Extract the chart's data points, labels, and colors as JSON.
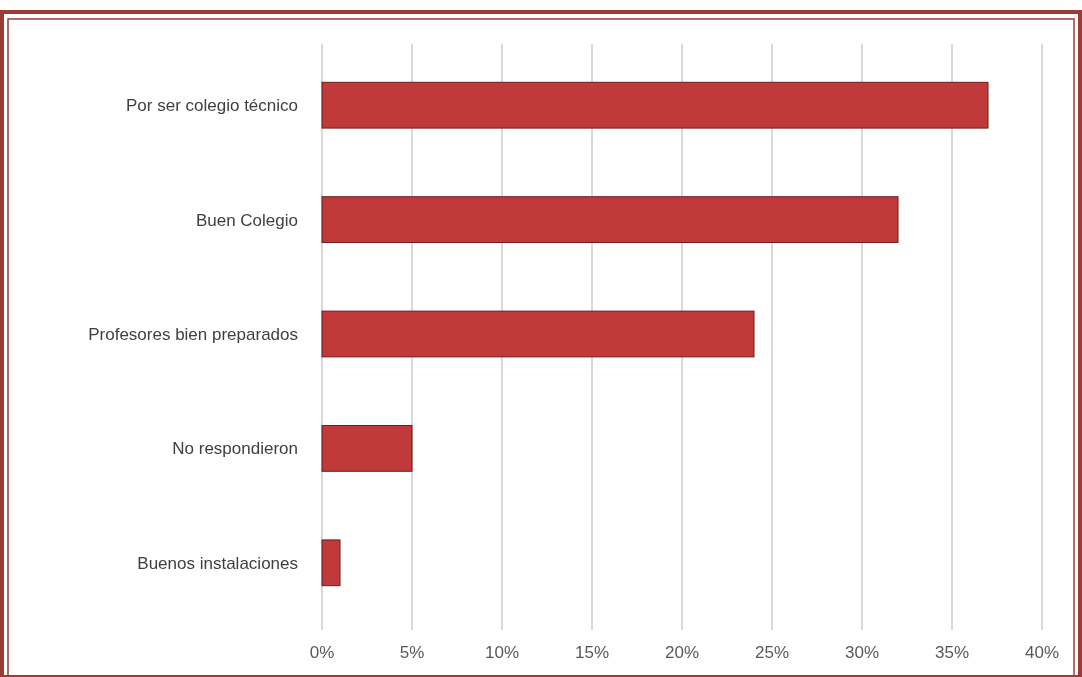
{
  "chart_data": {
    "type": "bar",
    "orientation": "horizontal",
    "categories": [
      "Por ser colegio técnico",
      "Buen Colegio",
      "Profesores bien preparados",
      "No respondieron",
      "Buenos instalaciones"
    ],
    "values": [
      37,
      32,
      24,
      5,
      1
    ],
    "color": "#c0393b",
    "xlim": [
      0,
      40
    ],
    "xticks": [
      {
        "value": 0,
        "label": "0%"
      },
      {
        "value": 5,
        "label": "5%"
      },
      {
        "value": 10,
        "label": "10%"
      },
      {
        "value": 15,
        "label": "15%"
      },
      {
        "value": 20,
        "label": "20%"
      },
      {
        "value": 25,
        "label": "25%"
      },
      {
        "value": 30,
        "label": "30%"
      },
      {
        "value": 35,
        "label": "35%"
      },
      {
        "value": 40,
        "label": "40%"
      }
    ],
    "grid": "x"
  }
}
